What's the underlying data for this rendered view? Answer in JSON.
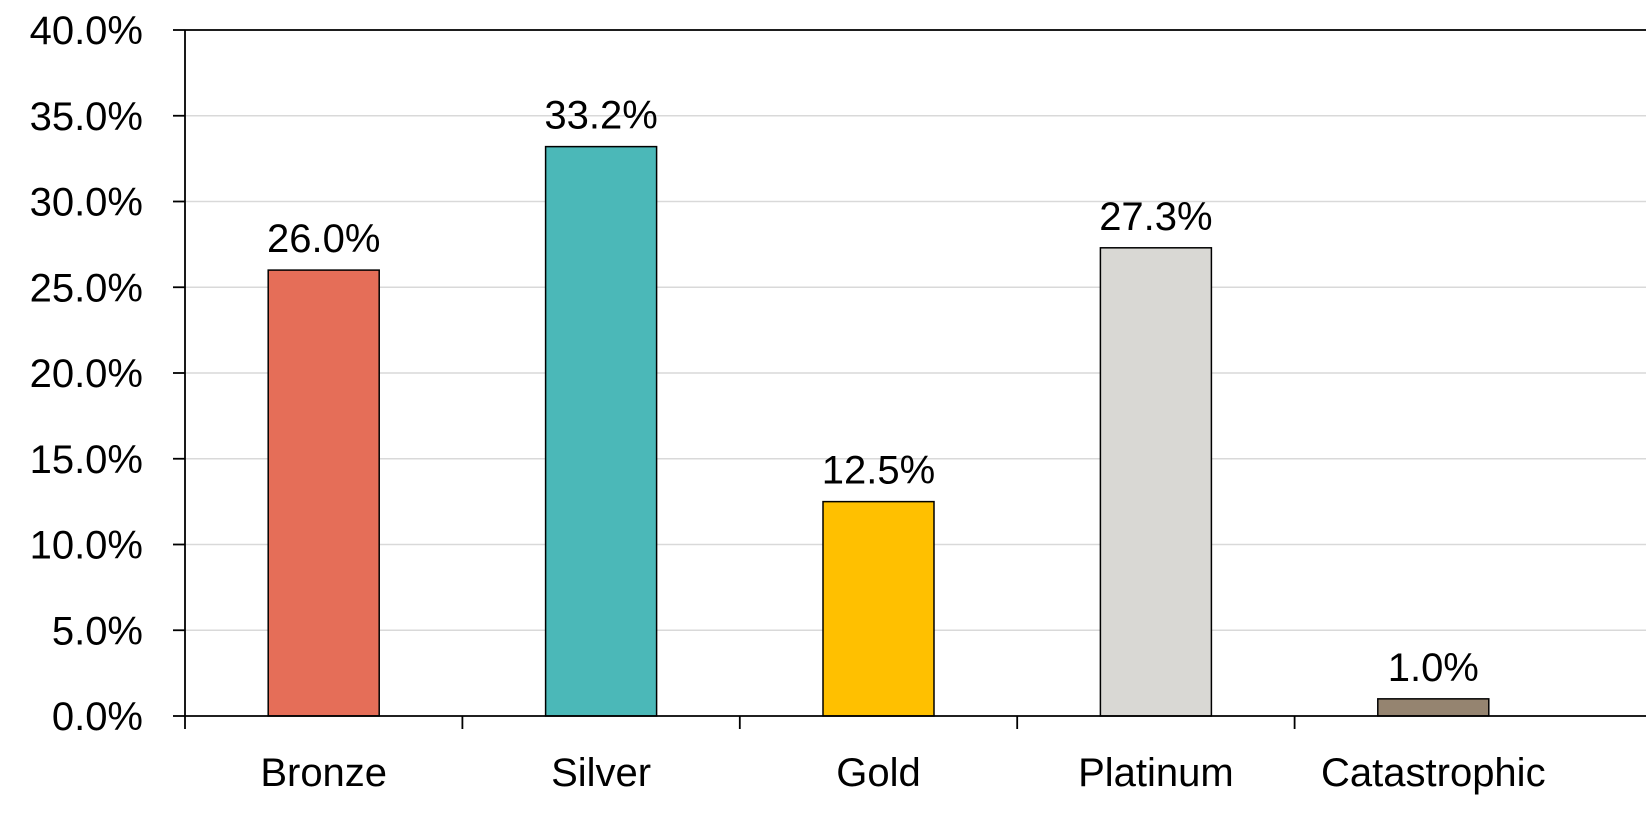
{
  "chart_data": {
    "type": "bar",
    "categories": [
      "Bronze",
      "Silver",
      "Gold",
      "Platinum",
      "Catastrophic"
    ],
    "values": [
      26.0,
      33.2,
      12.5,
      27.3,
      1.0
    ],
    "data_labels": [
      "26.0%",
      "33.2%",
      "12.5%",
      "27.3%",
      "1.0%"
    ],
    "colors": [
      "#E56E58",
      "#4BB8B8",
      "#FFC000",
      "#D9D8D4",
      "#958470"
    ],
    "ylim": [
      0,
      40
    ],
    "yticks": [
      0,
      5,
      10,
      15,
      20,
      25,
      30,
      35,
      40
    ],
    "ytick_labels": [
      "0.0%",
      "5.0%",
      "10.0%",
      "15.0%",
      "20.0%",
      "25.0%",
      "30.0%",
      "35.0%",
      "40.0%"
    ],
    "grid": true,
    "title": "",
    "xlabel": "",
    "ylabel": ""
  }
}
